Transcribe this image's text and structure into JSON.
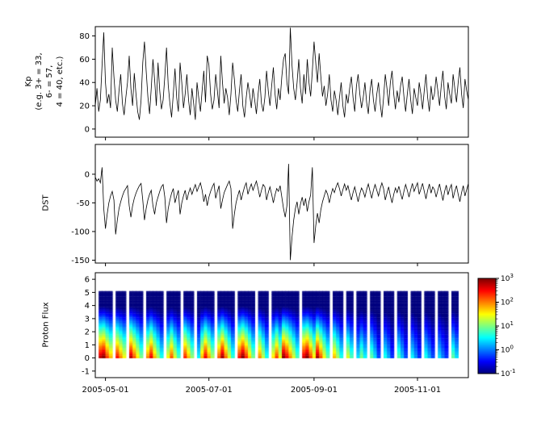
{
  "colors": {
    "line": "#000000",
    "background": "#ffffff",
    "frame": "#000000"
  },
  "xaxis": {
    "domain_days": 220,
    "tick_labels": [
      "2005-05-01",
      "2005-07-01",
      "2005-09-01",
      "2005-11-01"
    ],
    "tick_days": [
      6,
      67,
      129,
      190
    ]
  },
  "colorbar": {
    "scale": "log",
    "tick_exps": [
      3,
      2,
      1,
      0,
      -1
    ],
    "vmin_log": -1,
    "vmax_log": 3
  },
  "chart_data": [
    {
      "type": "line",
      "name": "kp-index",
      "ylabel": "Kp (e.g. 3+ = 33, 6- = 57, 4 = 40, etc.)",
      "ylabel_lines": [
        "Kp",
        "(e.g. 3+ = 33,",
        "6- = 57,",
        "4 = 40, etc.)"
      ],
      "yticks": [
        0,
        20,
        40,
        60,
        80
      ],
      "ylim": [
        -7,
        88
      ],
      "x_start_day": 0,
      "x_step_days": 1,
      "values": [
        20,
        35,
        15,
        25,
        55,
        83,
        40,
        22,
        30,
        18,
        70,
        45,
        25,
        15,
        33,
        47,
        22,
        12,
        27,
        40,
        63,
        35,
        20,
        48,
        30,
        15,
        8,
        25,
        57,
        75,
        50,
        28,
        13,
        35,
        60,
        42,
        20,
        57,
        33,
        17,
        25,
        45,
        70,
        38,
        22,
        10,
        30,
        52,
        27,
        15,
        57,
        40,
        18,
        30,
        47,
        25,
        12,
        35,
        22,
        8,
        40,
        27,
        15,
        33,
        50,
        23,
        63,
        55,
        30,
        17,
        25,
        47,
        33,
        18,
        63,
        40,
        22,
        35,
        27,
        12,
        30,
        57,
        43,
        25,
        15,
        33,
        47,
        20,
        10,
        27,
        40,
        30,
        18,
        35,
        25,
        13,
        30,
        43,
        22,
        15,
        27,
        50,
        33,
        20,
        37,
        53,
        30,
        17,
        35,
        25,
        45,
        60,
        65,
        40,
        30,
        87,
        55,
        35,
        25,
        40,
        60,
        35,
        22,
        47,
        30,
        60,
        40,
        28,
        50,
        75,
        57,
        40,
        65,
        45,
        28,
        37,
        20,
        30,
        47,
        25,
        15,
        33,
        25,
        12,
        27,
        40,
        20,
        10,
        30,
        22,
        35,
        45,
        27,
        15,
        37,
        47,
        30,
        18,
        27,
        40,
        23,
        13,
        33,
        43,
        25,
        15,
        30,
        40,
        22,
        10,
        27,
        47,
        35,
        20,
        40,
        50,
        30,
        17,
        33,
        23,
        37,
        45,
        28,
        15,
        30,
        43,
        25,
        13,
        35,
        27,
        20,
        40,
        30,
        17,
        33,
        47,
        27,
        15,
        37,
        25,
        30,
        45,
        33,
        20,
        37,
        50,
        28,
        17,
        40,
        30,
        22,
        47,
        35,
        23,
        40,
        53,
        30,
        18,
        43,
        33,
        25
      ]
    },
    {
      "type": "line",
      "name": "dst-index",
      "ylabel": "DST",
      "yticks": [
        0,
        -50,
        -100,
        -150
      ],
      "ylim": [
        -155,
        52
      ],
      "x_start_day": 0,
      "x_step_days": 1,
      "values": [
        -5,
        -12,
        -8,
        -15,
        12,
        -60,
        -95,
        -70,
        -50,
        -38,
        -30,
        -45,
        -105,
        -80,
        -60,
        -48,
        -38,
        -30,
        -25,
        -20,
        -55,
        -75,
        -55,
        -42,
        -33,
        -26,
        -20,
        -16,
        -45,
        -80,
        -60,
        -45,
        -35,
        -28,
        -55,
        -70,
        -50,
        -40,
        -30,
        -22,
        -18,
        -40,
        -85,
        -60,
        -45,
        -33,
        -25,
        -50,
        -38,
        -28,
        -70,
        -50,
        -38,
        -28,
        -45,
        -33,
        -24,
        -35,
        -26,
        -18,
        -30,
        -22,
        -15,
        -28,
        -48,
        -35,
        -55,
        -40,
        -30,
        -22,
        -16,
        -42,
        -30,
        -20,
        -60,
        -45,
        -32,
        -25,
        -18,
        -12,
        -25,
        -95,
        -70,
        -50,
        -38,
        -28,
        -45,
        -33,
        -22,
        -15,
        -35,
        -25,
        -17,
        -28,
        -20,
        -12,
        -25,
        -40,
        -28,
        -18,
        -22,
        -45,
        -32,
        -22,
        -35,
        -50,
        -36,
        -25,
        -30,
        -20,
        -40,
        -60,
        -75,
        -55,
        18,
        -150,
        -110,
        -80,
        -60,
        -48,
        -70,
        -52,
        -40,
        -55,
        -42,
        -65,
        -48,
        -36,
        12,
        -120,
        -90,
        -68,
        -85,
        -62,
        -48,
        -38,
        -28,
        -35,
        -50,
        -36,
        -25,
        -32,
        -22,
        -15,
        -25,
        -38,
        -27,
        -17,
        -28,
        -20,
        -33,
        -45,
        -32,
        -22,
        -35,
        -48,
        -34,
        -24,
        -30,
        -40,
        -27,
        -17,
        -30,
        -42,
        -28,
        -18,
        -28,
        -38,
        -25,
        -15,
        -25,
        -45,
        -33,
        -22,
        -38,
        -50,
        -35,
        -24,
        -32,
        -21,
        -33,
        -44,
        -30,
        -18,
        -28,
        -40,
        -27,
        -16,
        -30,
        -22,
        -15,
        -35,
        -26,
        -16,
        -30,
        -43,
        -28,
        -17,
        -33,
        -22,
        -27,
        -40,
        -28,
        -17,
        -32,
        -46,
        -30,
        -19,
        -36,
        -25,
        -18,
        -42,
        -30,
        -20,
        -35,
        -48,
        -32,
        -20,
        -38,
        -27,
        -16
      ]
    },
    {
      "type": "heatmap",
      "name": "proton-flux",
      "ylabel": "Proton Flux",
      "yticks": [
        -1,
        0,
        1,
        2,
        3,
        4,
        5,
        6
      ],
      "ylim": [
        -1.5,
        6.5
      ],
      "y_extent": [
        0,
        5
      ],
      "column_day_step": 2,
      "column_model": {
        "top_log_flux": -1.3,
        "decay_span_y": 4.2
      },
      "log_flux_at_y0": [
        null,
        2.8,
        3.0,
        2.3,
        1.8,
        null,
        2.5,
        2.0,
        1.5,
        null,
        2.8,
        2.2,
        1.6,
        1.0,
        null,
        2.0,
        2.6,
        1.8,
        1.2,
        0.6,
        null,
        1.5,
        2.2,
        1.4,
        0.8,
        null,
        2.4,
        1.8,
        1.1,
        null,
        0.5,
        1.8,
        2.6,
        1.9,
        1.2,
        null,
        2.2,
        2.9,
        2.1,
        1.4,
        0.7,
        null,
        2.5,
        3.0,
        2.4,
        1.7,
        1.0,
        null,
        2.0,
        1.3,
        0.6,
        null,
        1.6,
        2.3,
        1.5,
        3.0,
        2.6,
        2.0,
        1.4,
        0.8,
        null,
        2.7,
        3.0,
        2.3,
        1.6,
        2.9,
        2.2,
        1.5,
        0.9,
        null,
        1.8,
        1.2,
        0.6,
        null,
        1.4,
        0.8,
        null,
        0.4,
        1.0,
        0.5,
        null,
        0.9,
        0.4,
        -0.2,
        null,
        0.6,
        0.2,
        -0.3,
        null,
        0.8,
        0.3,
        -0.2,
        null,
        0.5,
        0.1,
        -0.3,
        null,
        0.6,
        0.2,
        -0.2,
        null,
        0.4,
        0.0,
        -0.3,
        null,
        0.9,
        0.4,
        null,
        null,
        null
      ]
    }
  ]
}
